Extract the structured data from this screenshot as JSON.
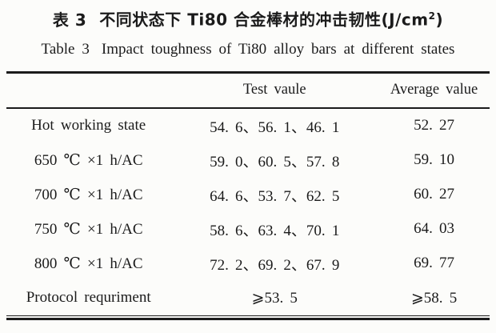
{
  "caption": {
    "zh_label": "表 3",
    "zh_title": "不同状态下 Ti80 合金棒材的冲击韧性(J/cm",
    "zh_sup": "2",
    "zh_close": ")",
    "en_label": "Table 3",
    "en_title": "Impact toughness of Ti80 alloy bars at different states"
  },
  "table": {
    "columns": [
      "",
      "Test vaule",
      "Average value"
    ],
    "rows": [
      {
        "state": "Hot working state",
        "test_values": "54. 6、56. 1、46. 1",
        "average": "52. 27"
      },
      {
        "state": "650 ℃ ×1 h/AC",
        "test_values": "59. 0、60. 5、57. 8",
        "average": "59. 10"
      },
      {
        "state": "700 ℃ ×1 h/AC",
        "test_values": "64. 6、53. 7、62. 5",
        "average": "60. 27"
      },
      {
        "state": "750 ℃ ×1 h/AC",
        "test_values": "58. 6、63. 4、70. 1",
        "average": "64. 03"
      },
      {
        "state": "800 ℃ ×1 h/AC",
        "test_values": "72. 2、69. 2、67. 9",
        "average": "69. 77"
      },
      {
        "state": "Protocol requriment",
        "test_values": "⩾53. 5",
        "average": "⩾58. 5"
      }
    ]
  },
  "colors": {
    "text": "#1b1b1b",
    "rule": "#1b1b1b",
    "background": "#fcfcfa"
  }
}
